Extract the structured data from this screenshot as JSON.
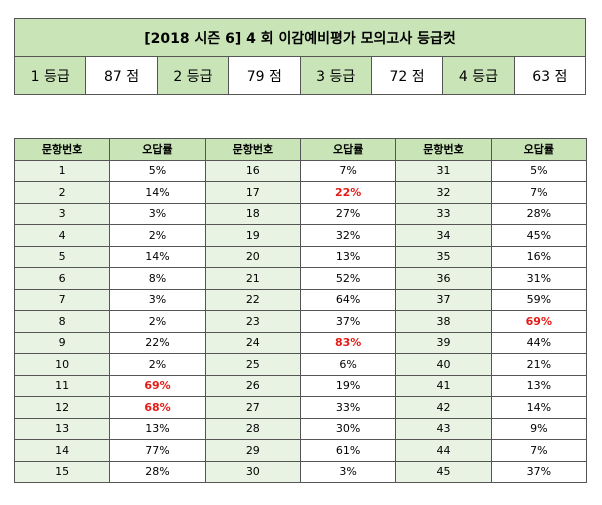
{
  "title": "[2018  시즌 6] 4 회  이감예비평가  모의고사  등급컷",
  "grades": [
    {
      "label": "1 등급",
      "score": "87 점"
    },
    {
      "label": "2 등급",
      "score": "79 점"
    },
    {
      "label": "3 등급",
      "score": "72 점"
    },
    {
      "label": "4 등급",
      "score": "63 점"
    }
  ],
  "table": {
    "headers": [
      "문항번호",
      "오답률",
      "문항번호",
      "오답률",
      "문항번호",
      "오답률"
    ],
    "rows": [
      [
        {
          "n": "1",
          "r": "5%",
          "hi": false
        },
        {
          "n": "16",
          "r": "7%",
          "hi": false
        },
        {
          "n": "31",
          "r": "5%",
          "hi": false
        }
      ],
      [
        {
          "n": "2",
          "r": "14%",
          "hi": false
        },
        {
          "n": "17",
          "r": "22%",
          "hi": true
        },
        {
          "n": "32",
          "r": "7%",
          "hi": false
        }
      ],
      [
        {
          "n": "3",
          "r": "3%",
          "hi": false
        },
        {
          "n": "18",
          "r": "27%",
          "hi": false
        },
        {
          "n": "33",
          "r": "28%",
          "hi": false
        }
      ],
      [
        {
          "n": "4",
          "r": "2%",
          "hi": false
        },
        {
          "n": "19",
          "r": "32%",
          "hi": false
        },
        {
          "n": "34",
          "r": "45%",
          "hi": false
        }
      ],
      [
        {
          "n": "5",
          "r": "14%",
          "hi": false
        },
        {
          "n": "20",
          "r": "13%",
          "hi": false
        },
        {
          "n": "35",
          "r": "16%",
          "hi": false
        }
      ],
      [
        {
          "n": "6",
          "r": "8%",
          "hi": false
        },
        {
          "n": "21",
          "r": "52%",
          "hi": false
        },
        {
          "n": "36",
          "r": "31%",
          "hi": false
        }
      ],
      [
        {
          "n": "7",
          "r": "3%",
          "hi": false
        },
        {
          "n": "22",
          "r": "64%",
          "hi": false
        },
        {
          "n": "37",
          "r": "59%",
          "hi": false
        }
      ],
      [
        {
          "n": "8",
          "r": "2%",
          "hi": false
        },
        {
          "n": "23",
          "r": "37%",
          "hi": false
        },
        {
          "n": "38",
          "r": "69%",
          "hi": true
        }
      ],
      [
        {
          "n": "9",
          "r": "22%",
          "hi": false
        },
        {
          "n": "24",
          "r": "83%",
          "hi": true
        },
        {
          "n": "39",
          "r": "44%",
          "hi": false
        }
      ],
      [
        {
          "n": "10",
          "r": "2%",
          "hi": false
        },
        {
          "n": "25",
          "r": "6%",
          "hi": false
        },
        {
          "n": "40",
          "r": "21%",
          "hi": false
        }
      ],
      [
        {
          "n": "11",
          "r": "69%",
          "hi": true
        },
        {
          "n": "26",
          "r": "19%",
          "hi": false
        },
        {
          "n": "41",
          "r": "13%",
          "hi": false
        }
      ],
      [
        {
          "n": "12",
          "r": "68%",
          "hi": true
        },
        {
          "n": "27",
          "r": "33%",
          "hi": false
        },
        {
          "n": "42",
          "r": "14%",
          "hi": false
        }
      ],
      [
        {
          "n": "13",
          "r": "13%",
          "hi": false
        },
        {
          "n": "28",
          "r": "30%",
          "hi": false
        },
        {
          "n": "43",
          "r": "9%",
          "hi": false
        }
      ],
      [
        {
          "n": "14",
          "r": "77%",
          "hi": false
        },
        {
          "n": "29",
          "r": "61%",
          "hi": false
        },
        {
          "n": "44",
          "r": "7%",
          "hi": false
        }
      ],
      [
        {
          "n": "15",
          "r": "28%",
          "hi": false
        },
        {
          "n": "30",
          "r": "3%",
          "hi": false
        },
        {
          "n": "45",
          "r": "37%",
          "hi": false
        }
      ]
    ]
  },
  "colors": {
    "header_bg": "#c9e5b7",
    "num_bg": "#e9f3e3",
    "highlight": "#e41b17"
  }
}
